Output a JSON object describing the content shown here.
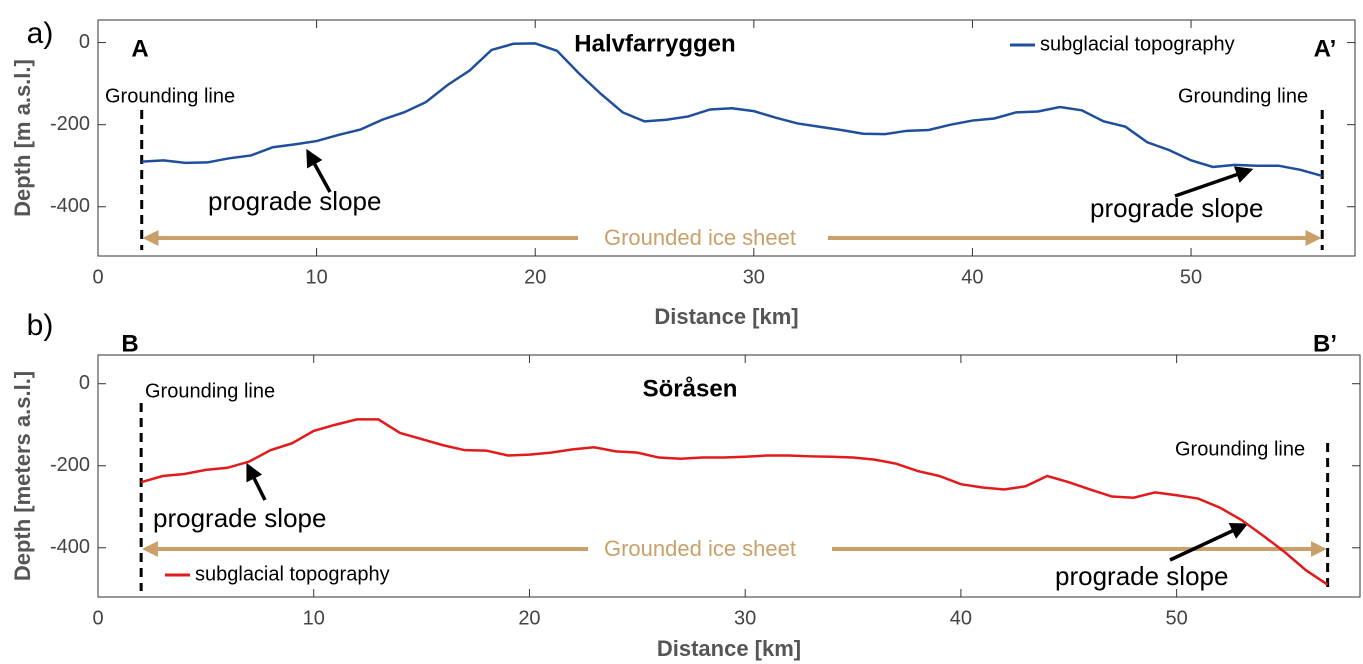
{
  "chart_data": [
    {
      "type": "line",
      "panel_label": "a)",
      "title": "Halvfarryggen",
      "xlabel": "Distance [km]",
      "ylabel": "Depth [m a.s.l.]",
      "xlim": [
        0,
        57.5
      ],
      "ylim": [
        -520,
        55
      ],
      "xticks": [
        0,
        10,
        20,
        30,
        40,
        50
      ],
      "yticks": [
        -400,
        -200,
        0
      ],
      "legend": "upper right",
      "series": [
        {
          "name": "subglacial topography",
          "color": "#1f4e9c",
          "x": [
            2,
            3,
            4,
            5,
            6,
            7,
            8,
            9,
            10,
            11,
            12,
            13,
            14,
            15,
            16,
            17,
            18,
            19,
            20,
            21,
            22,
            23,
            24,
            25,
            26,
            27,
            28,
            29,
            30,
            31,
            32,
            33,
            34,
            35,
            36,
            37,
            38,
            39,
            40,
            41,
            42,
            43,
            44,
            45,
            46,
            47,
            48,
            49,
            50,
            51,
            52,
            53,
            54,
            55,
            56
          ],
          "values": [
            -290,
            -287,
            -293,
            -292,
            -282,
            -275,
            -255,
            -248,
            -240,
            -225,
            -212,
            -188,
            -170,
            -145,
            -103,
            -68,
            -18,
            -3,
            -2,
            -20,
            -75,
            -125,
            -170,
            -192,
            -188,
            -180,
            -163,
            -160,
            -167,
            -183,
            -197,
            -205,
            -213,
            -222,
            -223,
            -215,
            -213,
            -200,
            -190,
            -185,
            -170,
            -168,
            -157,
            -165,
            -192,
            -205,
            -243,
            -262,
            -287,
            -303,
            -298,
            -300,
            -300,
            -310,
            -325
          ]
        }
      ],
      "grounding_lines": [
        2,
        56
      ],
      "point_labels": [
        "A",
        "A’"
      ],
      "grounding_line_labels": [
        "Grounding line",
        "Grounding line"
      ],
      "slope_labels": [
        "prograde slope",
        "prograde slope"
      ],
      "ice_sheet_label": "Grounded ice sheet",
      "ice_sheet_color": "#c9a06a"
    },
    {
      "type": "line",
      "panel_label": "b)",
      "title": "Söråsen",
      "xlabel": "Distance [km]",
      "ylabel": "Depth [meters a.s.l.]",
      "xlim": [
        0,
        58.5
      ],
      "ylim": [
        -520,
        70
      ],
      "xticks": [
        0,
        10,
        20,
        30,
        40,
        50
      ],
      "yticks": [
        -400,
        -200,
        0
      ],
      "legend": "lower left",
      "series": [
        {
          "name": "subglacial topography",
          "color": "#e31a1c",
          "x": [
            2,
            3,
            4,
            5,
            6,
            7,
            8,
            9,
            10,
            11,
            12,
            13,
            14,
            15,
            16,
            17,
            18,
            19,
            20,
            21,
            22,
            23,
            24,
            25,
            26,
            27,
            28,
            29,
            30,
            31,
            32,
            33,
            34,
            35,
            36,
            37,
            38,
            39,
            40,
            41,
            42,
            43,
            44,
            45,
            46,
            47,
            48,
            49,
            50,
            51,
            52,
            53,
            54,
            55,
            56,
            57
          ],
          "values": [
            -240,
            -225,
            -220,
            -210,
            -205,
            -190,
            -162,
            -145,
            -115,
            -100,
            -87,
            -87,
            -120,
            -135,
            -150,
            -162,
            -163,
            -175,
            -173,
            -168,
            -160,
            -155,
            -165,
            -168,
            -180,
            -183,
            -180,
            -180,
            -178,
            -175,
            -175,
            -177,
            -178,
            -180,
            -185,
            -195,
            -213,
            -225,
            -245,
            -253,
            -258,
            -250,
            -225,
            -240,
            -258,
            -275,
            -278,
            -265,
            -272,
            -280,
            -302,
            -332,
            -370,
            -410,
            -455,
            -490
          ]
        }
      ],
      "grounding_lines": [
        2,
        57
      ],
      "point_labels": [
        "B",
        "B’"
      ],
      "grounding_line_labels": [
        "Grounding line",
        "Grounding line"
      ],
      "slope_labels": [
        "prograde slope",
        "prograde slope"
      ],
      "ice_sheet_label": "Grounded ice sheet",
      "ice_sheet_color": "#c9a06a"
    }
  ]
}
